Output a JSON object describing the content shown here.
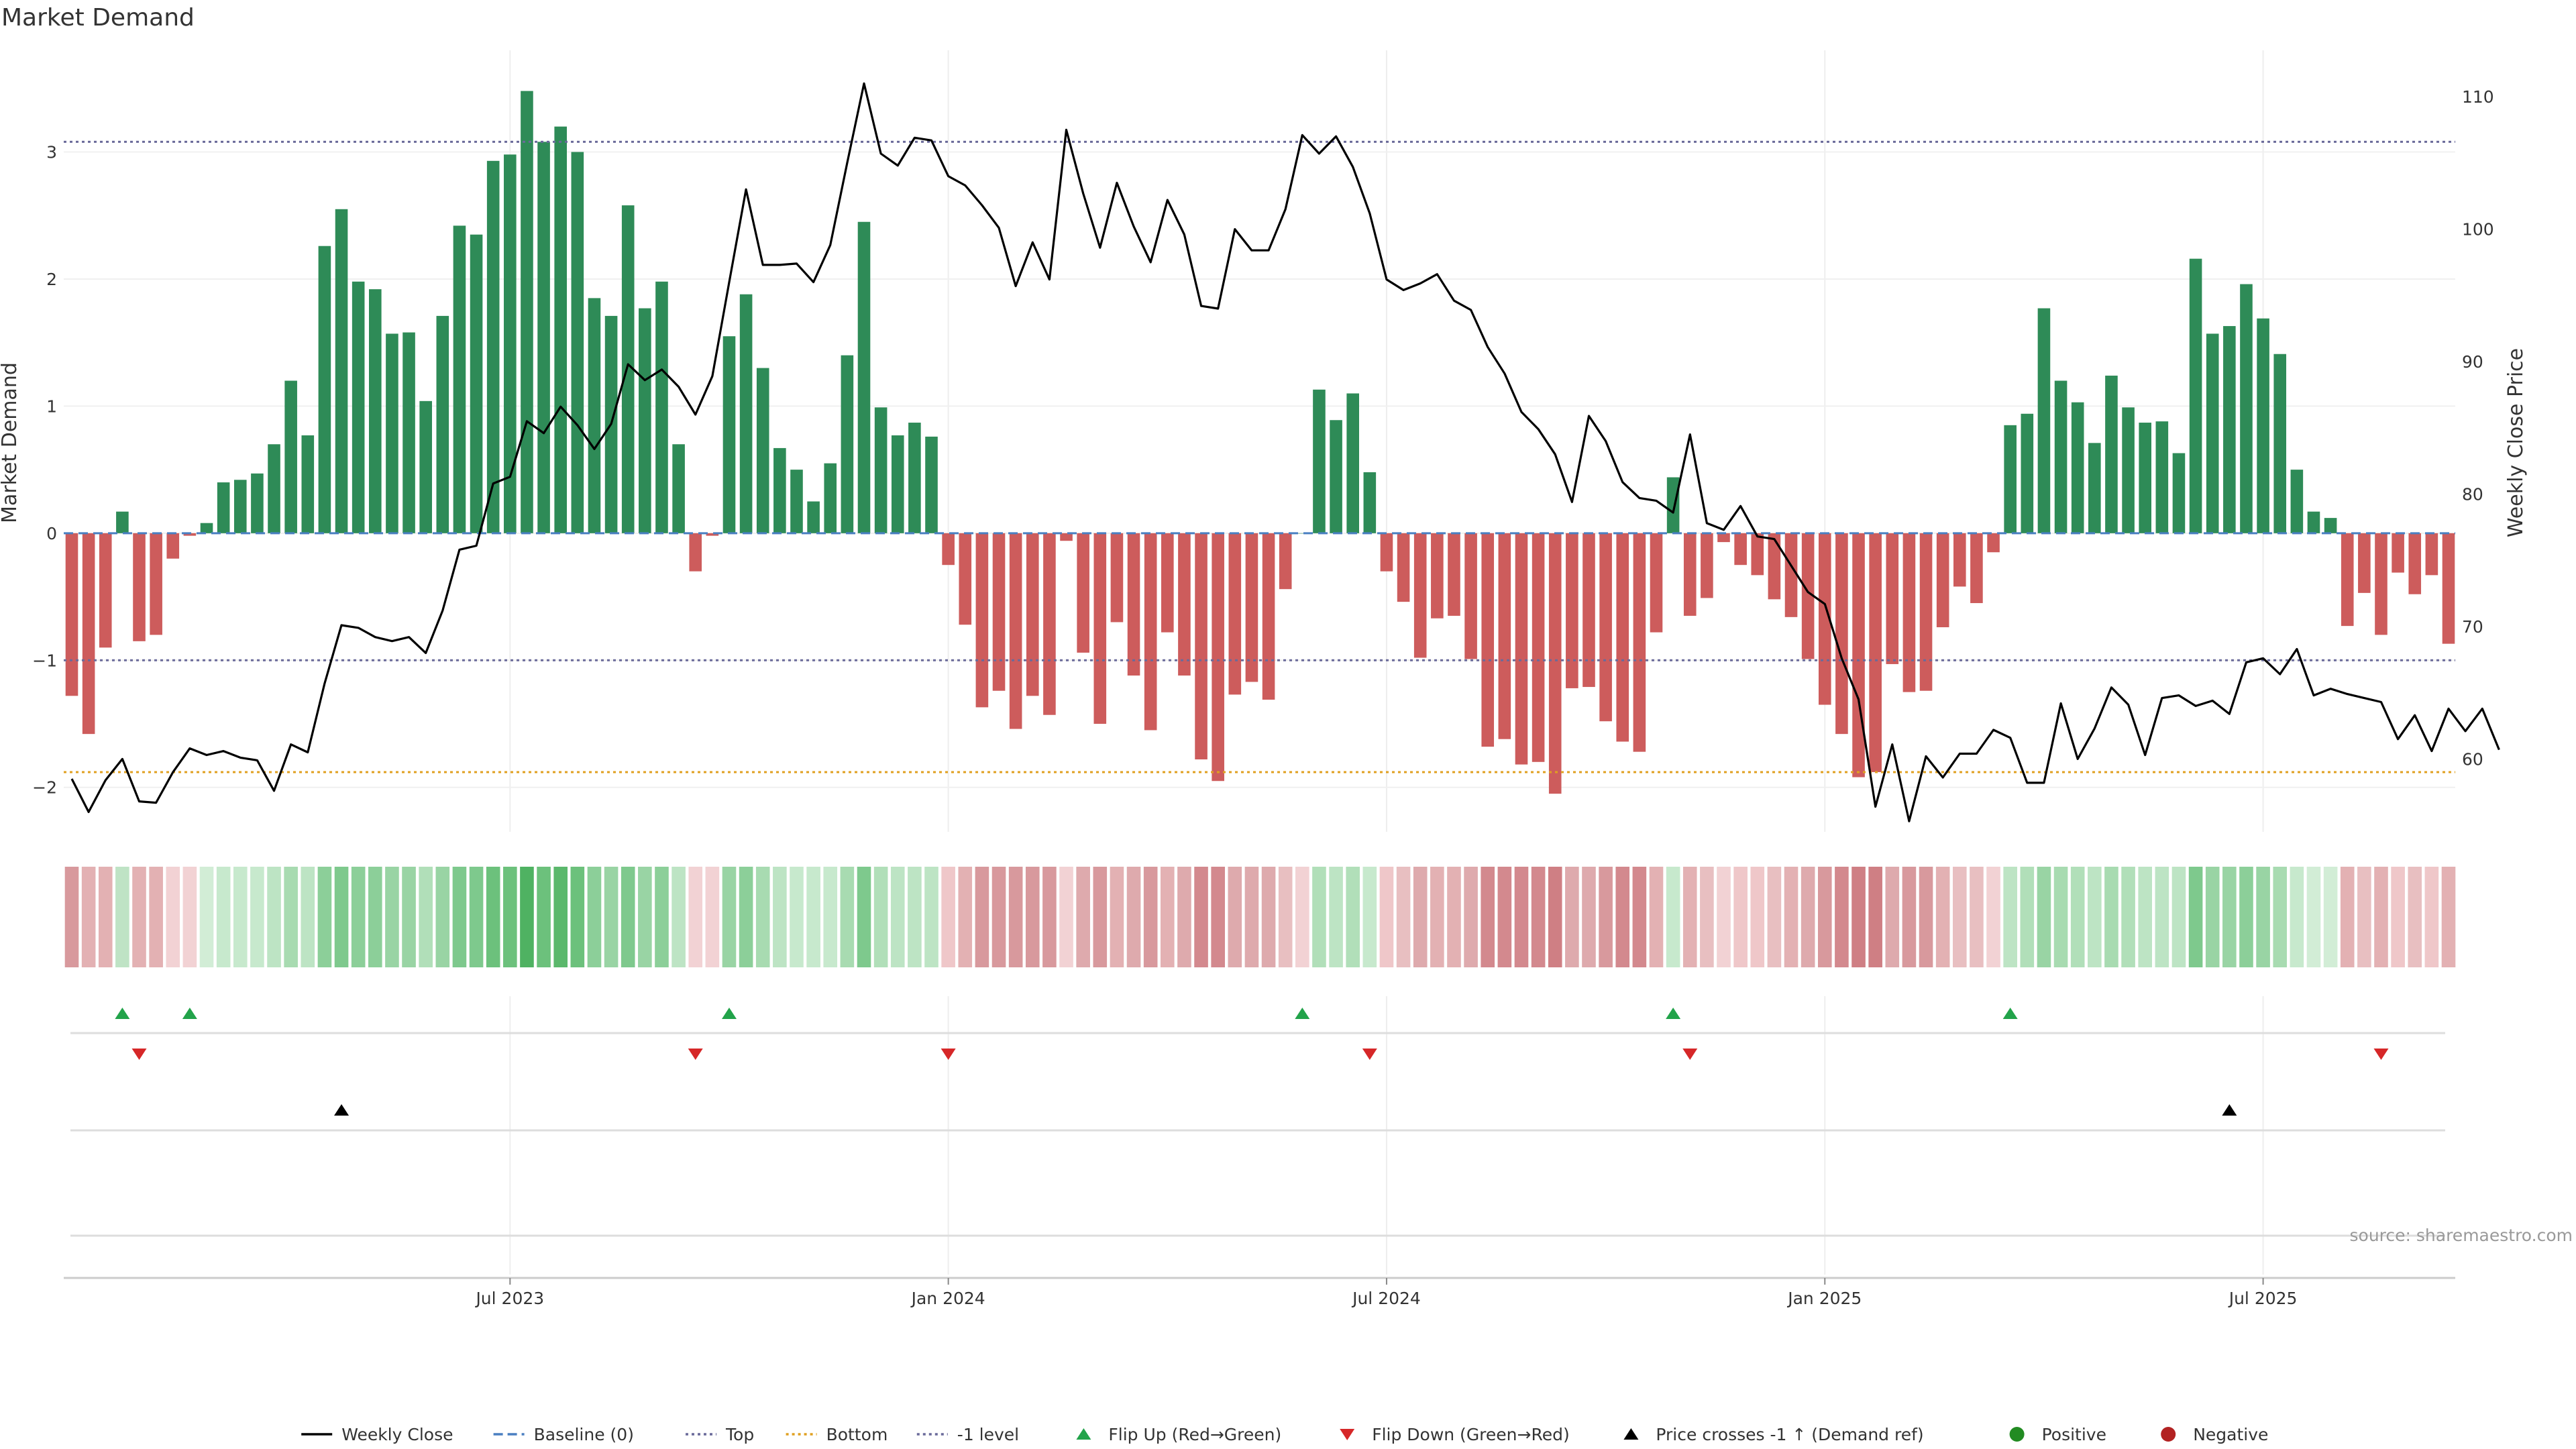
{
  "chart_data": {
    "type": "bar",
    "title": "Market Demand",
    "ylabel": "Market Demand",
    "y2label": "Weekly Close Price",
    "ylim": [
      -2.35,
      3.8
    ],
    "y2lim": [
      54.5,
      113.5
    ],
    "yticks": [
      -2,
      -1,
      0,
      1,
      2,
      3
    ],
    "y2ticks": [
      60,
      70,
      80,
      90,
      100,
      110
    ],
    "top_level": 3.08,
    "bottom_level": -1.88,
    "minus_one_level": -1,
    "x_start": "2023-01-02",
    "x_interval": "weekly",
    "x_tick_labels": [
      {
        "label": "Jul 2023",
        "index": 26
      },
      {
        "label": "Jan 2024",
        "index": 52
      },
      {
        "label": "Jul 2024",
        "index": 78
      },
      {
        "label": "Jan 2025",
        "index": 104
      },
      {
        "label": "Jul 2025",
        "index": 130
      }
    ],
    "series": [
      {
        "name": "Market Demand",
        "values": [
          -1.28,
          -1.58,
          -0.9,
          0.17,
          -0.85,
          -0.8,
          -0.2,
          -0.02,
          0.08,
          0.4,
          0.42,
          0.47,
          0.7,
          1.2,
          0.77,
          2.26,
          2.55,
          1.98,
          1.92,
          1.57,
          1.58,
          1.04,
          1.71,
          2.42,
          2.35,
          2.93,
          2.98,
          3.48,
          3.08,
          3.2,
          3.0,
          1.85,
          1.71,
          2.58,
          1.77,
          1.98,
          0.7,
          -0.3,
          -0.02,
          1.55,
          1.88,
          1.3,
          0.67,
          0.5,
          0.25,
          0.55,
          1.4,
          2.45,
          0.99,
          0.77,
          0.87,
          0.76,
          -0.25,
          -0.72,
          -1.37,
          -1.24,
          -1.54,
          -1.28,
          -1.43,
          -0.06,
          -0.94,
          -1.5,
          -0.7,
          -1.12,
          -1.55,
          -0.78,
          -1.12,
          -1.78,
          -1.95,
          -1.27,
          -1.17,
          -1.31,
          -0.44,
          0.0,
          1.13,
          0.89,
          1.1,
          0.48,
          -0.3,
          -0.54,
          -0.98,
          -0.67,
          -0.65,
          -0.99,
          -1.68,
          -1.62,
          -1.82,
          -1.8,
          -2.05,
          -1.22,
          -1.21,
          -1.48,
          -1.64,
          -1.72,
          -0.78,
          0.44,
          -0.65,
          -0.51,
          -0.07,
          -0.25,
          -0.33,
          -0.52,
          -0.66,
          -0.99,
          -1.35,
          -1.58,
          -1.92,
          -1.88,
          -1.03,
          -1.25,
          -1.24,
          -0.74,
          -0.42,
          -0.55,
          -0.15,
          0.85,
          0.94,
          1.77,
          1.2,
          1.03,
          0.71,
          1.24,
          0.99,
          0.87,
          0.88,
          0.63,
          2.16,
          1.57,
          1.63,
          1.96,
          1.69,
          1.41,
          0.5,
          0.17,
          0.12,
          -0.73,
          -0.47,
          -0.8,
          -0.31,
          -0.48,
          -0.33,
          -0.87
        ]
      },
      {
        "name": "Weekly Close",
        "values": [
          58.5,
          56.0,
          58.4,
          60.0,
          56.8,
          56.7,
          59.0,
          60.8,
          60.3,
          60.6,
          60.1,
          59.9,
          57.6,
          61.1,
          60.5,
          65.7,
          70.1,
          69.9,
          69.2,
          68.9,
          69.2,
          68.0,
          71.2,
          75.8,
          76.1,
          80.8,
          81.3,
          85.5,
          84.6,
          86.6,
          85.2,
          83.4,
          85.3,
          89.8,
          88.6,
          89.4,
          88.1,
          86.0,
          88.9,
          96.0,
          103.0,
          97.3,
          97.3,
          97.4,
          96.0,
          98.8,
          105.0,
          111.0,
          105.7,
          104.8,
          106.9,
          106.7,
          104.0,
          103.3,
          101.8,
          100.1,
          95.7,
          99.0,
          96.2,
          107.5,
          102.7,
          98.6,
          103.5,
          100.2,
          97.5,
          102.2,
          99.6,
          94.2,
          94.0,
          100.0,
          98.4,
          98.4,
          101.5,
          107.1,
          105.7,
          107.0,
          104.7,
          101.2,
          96.2,
          95.4,
          95.9,
          96.6,
          94.6,
          93.9,
          91.1,
          89.1,
          86.2,
          84.9,
          83.0,
          79.4,
          85.9,
          84.0,
          80.9,
          79.7,
          79.5,
          78.6,
          84.5,
          77.8,
          77.3,
          79.1,
          76.8,
          76.6,
          74.6,
          72.6,
          71.7,
          67.6,
          64.5,
          56.4,
          61.1,
          55.3,
          60.2,
          58.6,
          60.4,
          60.4,
          62.2,
          61.6,
          58.2,
          58.2,
          64.2,
          60.0,
          62.3,
          65.4,
          64.1,
          60.3,
          64.6,
          64.8,
          64.0,
          64.4,
          63.4,
          67.3,
          67.6,
          66.4,
          68.3,
          64.8,
          65.3,
          64.9,
          64.6,
          64.3,
          61.5,
          63.3,
          60.6,
          63.8,
          62.1,
          63.8,
          60.7
        ]
      }
    ],
    "strip_colors": [
      "#d8999d",
      "#e3b1b3",
      "#e3b1b3",
      "#bfe3c5",
      "#e3b1b3",
      "#e3b1b3",
      "#f2d2d4",
      "#f2d2d4",
      "#d2edd6",
      "#c7e9cd",
      "#c7e9cd",
      "#c7e9cd",
      "#bde4c4",
      "#a8dbb1",
      "#bde4c4",
      "#8ccf99",
      "#7ec98d",
      "#8ccf99",
      "#8ccf99",
      "#99d4a4",
      "#99d4a4",
      "#b1dfb9",
      "#99d4a4",
      "#7ec98d",
      "#7ec98d",
      "#6cc17c",
      "#6cc17c",
      "#4fb262",
      "#6cc17c",
      "#5bb86c",
      "#6cc17c",
      "#8ccf99",
      "#99d4a4",
      "#7ec98d",
      "#99d4a4",
      "#8ccf99",
      "#bde4c4",
      "#f2d2d4",
      "#f2d2d4",
      "#99d4a4",
      "#8ccf99",
      "#a8dbb1",
      "#bde4c4",
      "#c7e9cd",
      "#c7e9cd",
      "#c7e9cd",
      "#a8dbb1",
      "#7ec98d",
      "#b1dfb9",
      "#bde4c4",
      "#bde4c4",
      "#bde4c4",
      "#efc7c9",
      "#e3b1b3",
      "#d8999d",
      "#d8999d",
      "#d8999d",
      "#d8999d",
      "#d8999d",
      "#f2d2d4",
      "#deaaad",
      "#d8999d",
      "#e3b1b3",
      "#deaaad",
      "#d8999d",
      "#e3b1b3",
      "#deaaad",
      "#d3898e",
      "#d3898e",
      "#deaaad",
      "#deaaad",
      "#deaaad",
      "#e8bfc1",
      "#f2d2d4",
      "#b1dfb9",
      "#bde4c4",
      "#b1dfb9",
      "#c7e9cd",
      "#efc7c9",
      "#e8bfc1",
      "#deaaad",
      "#e3b1b3",
      "#e3b1b3",
      "#deaaad",
      "#d3898e",
      "#d3898e",
      "#d3898e",
      "#d3898e",
      "#cf7f84",
      "#deaaad",
      "#deaaad",
      "#d8999d",
      "#d3898e",
      "#d3898e",
      "#e3b1b3",
      "#c7e9cd",
      "#e3b1b3",
      "#e8bfc1",
      "#f2d2d4",
      "#efc7c9",
      "#efc7c9",
      "#e8bfc1",
      "#e3b1b3",
      "#deaaad",
      "#d8999d",
      "#d3898e",
      "#cf7f84",
      "#cf7f84",
      "#deaaad",
      "#d8999d",
      "#d8999d",
      "#e3b1b3",
      "#e8bfc1",
      "#e8bfc1",
      "#f2d2d4",
      "#bde4c4",
      "#b1dfb9",
      "#99d4a4",
      "#a8dbb1",
      "#b1dfb9",
      "#bde4c4",
      "#a8dbb1",
      "#b1dfb9",
      "#bde4c4",
      "#bde4c4",
      "#bde4c4",
      "#7ec98d",
      "#99d4a4",
      "#99d4a4",
      "#8ccf99",
      "#99d4a4",
      "#a8dbb1",
      "#c7e9cd",
      "#d2edd6",
      "#d2edd6",
      "#e3b1b3",
      "#e8bfc1",
      "#e3b1b3",
      "#efc7c9",
      "#e8bfc1",
      "#efc7c9",
      "#e3b1b3"
    ],
    "flip_up_indices": [
      3,
      7,
      39,
      73,
      95,
      115
    ],
    "flip_down_indices": [
      4,
      37,
      52,
      77,
      96,
      137
    ],
    "price_cross_indices": [
      16,
      128
    ],
    "colors": {
      "positive_bar": "#2e8b57",
      "negative_bar": "#cd5c5c",
      "price_line": "#000000",
      "baseline": "#4a7fc1",
      "top_line": "#6a6a9a",
      "bottom_line": "#e0a020",
      "minus_one_line": "#6a6a9a",
      "flip_up": "#22a34a",
      "flip_down": "#d62728",
      "price_cross": "#000000",
      "positive_dot": "#228b22",
      "negative_dot": "#b22222"
    },
    "legend_placement": "bottom-center",
    "legend": [
      {
        "label": "Weekly Close",
        "kind": "line-solid",
        "color": "#000000"
      },
      {
        "label": "Baseline (0)",
        "kind": "line-dash",
        "color": "#4a7fc1"
      },
      {
        "label": "Top",
        "kind": "line-dot",
        "color": "#6a6a9a"
      },
      {
        "label": "Bottom",
        "kind": "line-dot",
        "color": "#e0a020"
      },
      {
        "label": "-1 level",
        "kind": "line-dot",
        "color": "#6a6a9a"
      },
      {
        "label": "Flip Up (Red→Green)",
        "kind": "triangle-up",
        "color": "#22a34a"
      },
      {
        "label": "Flip Down (Green→Red)",
        "kind": "triangle-down",
        "color": "#d62728"
      },
      {
        "label": "Price crosses -1 ↑ (Demand ref)",
        "kind": "triangle-up",
        "color": "#000000"
      },
      {
        "label": "Positive",
        "kind": "dot",
        "color": "#228b22"
      },
      {
        "label": "Negative",
        "kind": "dot",
        "color": "#b22222"
      }
    ],
    "source": "source: sharemaestro.com",
    "grid": true
  }
}
